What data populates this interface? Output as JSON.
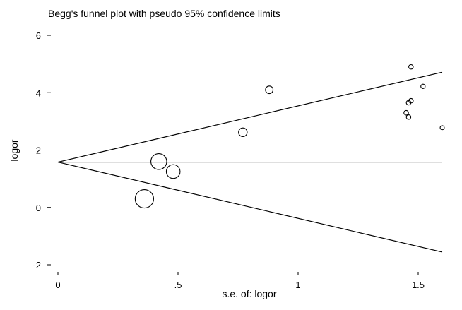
{
  "chart_data": {
    "type": "scatter",
    "title": "Begg's funnel plot with pseudo 95% confidence limits",
    "xlabel": "s.e. of: logor",
    "ylabel": "logor",
    "xlim": [
      0,
      1.6
    ],
    "ylim": [
      -2,
      6
    ],
    "x_ticks": [
      {
        "value": 0,
        "label": "0"
      },
      {
        "value": 0.5,
        "label": ".5"
      },
      {
        "value": 1,
        "label": "1"
      },
      {
        "value": 1.5,
        "label": "1.5"
      }
    ],
    "y_ticks": [
      {
        "value": -2,
        "label": "-2"
      },
      {
        "value": 0,
        "label": "0"
      },
      {
        "value": 2,
        "label": "2"
      },
      {
        "value": 4,
        "label": "4"
      },
      {
        "value": 6,
        "label": "6"
      }
    ],
    "pooled_estimate": 1.58,
    "confidence_multiplier": 1.96,
    "points": [
      {
        "se": 0.36,
        "logor": 0.3,
        "weight": 7.7
      },
      {
        "se": 0.42,
        "logor": 1.6,
        "weight": 5.7
      },
      {
        "se": 0.48,
        "logor": 1.25,
        "weight": 4.3
      },
      {
        "se": 0.77,
        "logor": 2.62,
        "weight": 1.7
      },
      {
        "se": 0.88,
        "logor": 4.1,
        "weight": 1.3
      },
      {
        "se": 1.45,
        "logor": 3.3,
        "weight": 0.48
      },
      {
        "se": 1.46,
        "logor": 3.65,
        "weight": 0.47
      },
      {
        "se": 1.47,
        "logor": 3.72,
        "weight": 0.46
      },
      {
        "se": 1.46,
        "logor": 3.15,
        "weight": 0.47
      },
      {
        "se": 1.47,
        "logor": 4.9,
        "weight": 0.46
      },
      {
        "se": 1.52,
        "logor": 4.22,
        "weight": 0.43
      },
      {
        "se": 1.6,
        "logor": 2.78,
        "weight": 0.39
      }
    ],
    "grid": false,
    "legend": "none"
  }
}
